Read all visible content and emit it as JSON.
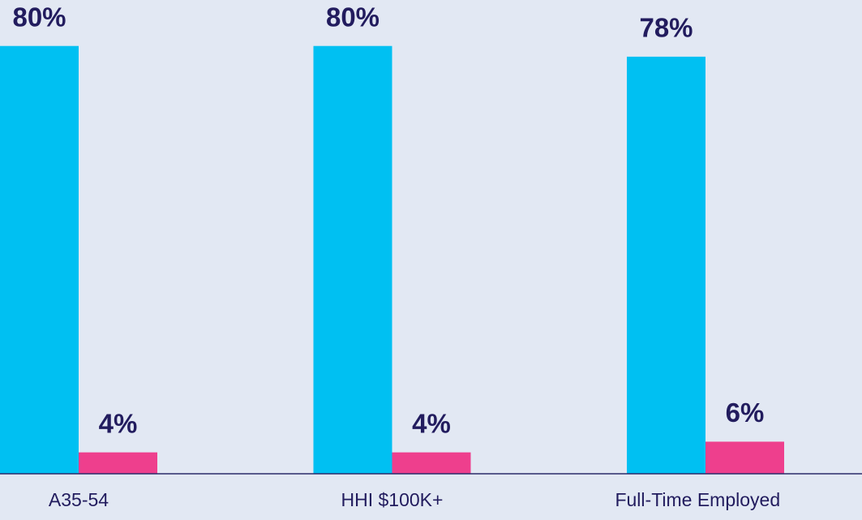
{
  "chart_data": {
    "type": "bar",
    "categories": [
      "A35-54",
      "HHI $100K+",
      "Full-Time Employed"
    ],
    "series": [
      {
        "color": "#00c0f2",
        "values": [
          80,
          80,
          78
        ],
        "value_labels": [
          "80%",
          "80%",
          "78%"
        ]
      },
      {
        "color": "#ee3f8d",
        "values": [
          4,
          4,
          6
        ],
        "value_labels": [
          "4%",
          "4%",
          "6%"
        ]
      }
    ],
    "ylim": [
      0,
      88.6
    ]
  }
}
